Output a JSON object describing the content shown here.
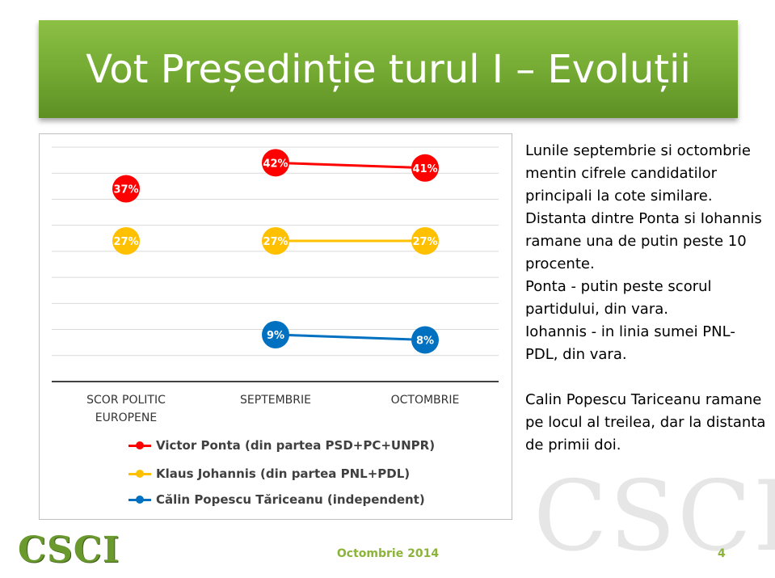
{
  "title": "Vot Președinție turul I – Evoluții",
  "chart_data": {
    "type": "line",
    "categories": [
      "SCOR POLITIC EUROPENE",
      "SEPTEMBRIE",
      "OCTOMBRIE"
    ],
    "ylim": [
      0,
      45
    ],
    "grid": true,
    "legend_position": "bottom",
    "series": [
      {
        "name": "Victor Ponta (din partea PSD+PC+UNPR)",
        "color": "#ff0000",
        "values": [
          37,
          42,
          41
        ],
        "labels": [
          "37%",
          "42%",
          "41%"
        ]
      },
      {
        "name": "Klaus Johannis (din partea PNL+PDL)",
        "color": "#ffc000",
        "values": [
          27,
          27,
          27
        ],
        "labels": [
          "27%",
          "27%",
          "27%"
        ]
      },
      {
        "name": "Călin Popescu Tăriceanu (independent)",
        "color": "#0070c0",
        "values": [
          null,
          9,
          8
        ],
        "labels": [
          null,
          "9%",
          "8%"
        ]
      }
    ]
  },
  "side_text": {
    "paragraph1": "Lunile septembrie si octombrie mentin cifrele candidatilor principali la cote similare.",
    "paragraph2": "Distanta dintre Ponta si Iohannis ramane una de putin peste 10 procente.",
    "paragraph3": "Ponta - putin peste scorul partidului, din vara.",
    "paragraph4": "Iohannis - in linia sumei PNL-PDL, din vara.",
    "paragraph5": "Calin Popescu Tariceanu ramane pe locul al treilea, dar la distanta de primii doi."
  },
  "footer": {
    "logo": "CSCI",
    "watermark": "CSCI",
    "date": "Octombrie 2014",
    "page": "4"
  }
}
